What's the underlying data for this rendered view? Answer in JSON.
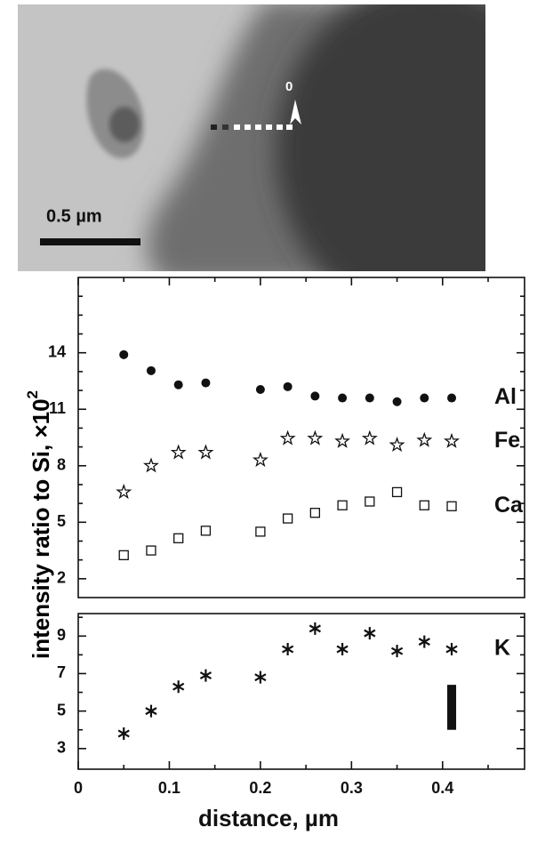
{
  "image": {
    "scale_bar_label": "0.5 µm",
    "marker_label": "0"
  },
  "chart_data": [
    {
      "type": "scatter",
      "ylabel": "intensity ratio to Si, ×10",
      "ylabel_exponent": "2",
      "xlim": [
        0,
        0.49
      ],
      "ylim": [
        1,
        18
      ],
      "yticks": [
        2,
        5,
        8,
        11,
        14
      ],
      "yminorticks": [
        3,
        4,
        6,
        7,
        9,
        10,
        12,
        13,
        15,
        16,
        17
      ],
      "x": [
        0.05,
        0.08,
        0.11,
        0.14,
        0.2,
        0.23,
        0.26,
        0.29,
        0.32,
        0.35,
        0.38,
        0.41
      ],
      "series": [
        {
          "name": "Al",
          "marker": "circle",
          "color": "#111111",
          "values": [
            13.9,
            13.05,
            12.3,
            12.4,
            12.05,
            12.2,
            11.7,
            11.6,
            11.6,
            11.4,
            11.6,
            11.6
          ]
        },
        {
          "name": "Fe",
          "marker": "star",
          "color": "#111111",
          "values": [
            6.6,
            8.0,
            8.7,
            8.7,
            8.3,
            9.45,
            9.45,
            9.3,
            9.45,
            9.1,
            9.35,
            9.3
          ]
        },
        {
          "name": "Ca",
          "marker": "square",
          "color": "#111111",
          "values": [
            3.25,
            3.5,
            4.15,
            4.55,
            4.5,
            5.2,
            5.5,
            5.9,
            6.1,
            6.6,
            5.9,
            5.85
          ]
        }
      ]
    },
    {
      "type": "scatter",
      "xlabel": "distance, µm",
      "xlim": [
        0,
        0.49
      ],
      "xticks": [
        0,
        0.1,
        0.2,
        0.3,
        0.4
      ],
      "xminorticks": [
        0.05,
        0.15,
        0.25,
        0.35,
        0.45
      ],
      "ylim": [
        1.9,
        10.2
      ],
      "yticks": [
        3,
        5,
        7,
        9
      ],
      "yminorticks": [
        4,
        6,
        8,
        10
      ],
      "x": [
        0.05,
        0.08,
        0.11,
        0.14,
        0.2,
        0.23,
        0.26,
        0.29,
        0.32,
        0.35,
        0.38,
        0.41
      ],
      "series": [
        {
          "name": "K",
          "marker": "asterisk",
          "color": "#111111",
          "values": [
            3.8,
            5.0,
            6.3,
            6.9,
            6.8,
            8.3,
            9.4,
            8.3,
            9.15,
            8.2,
            8.7,
            8.3
          ]
        }
      ],
      "error_bar": {
        "x": 0.41,
        "y": 5.2,
        "error": 1.2
      }
    }
  ]
}
